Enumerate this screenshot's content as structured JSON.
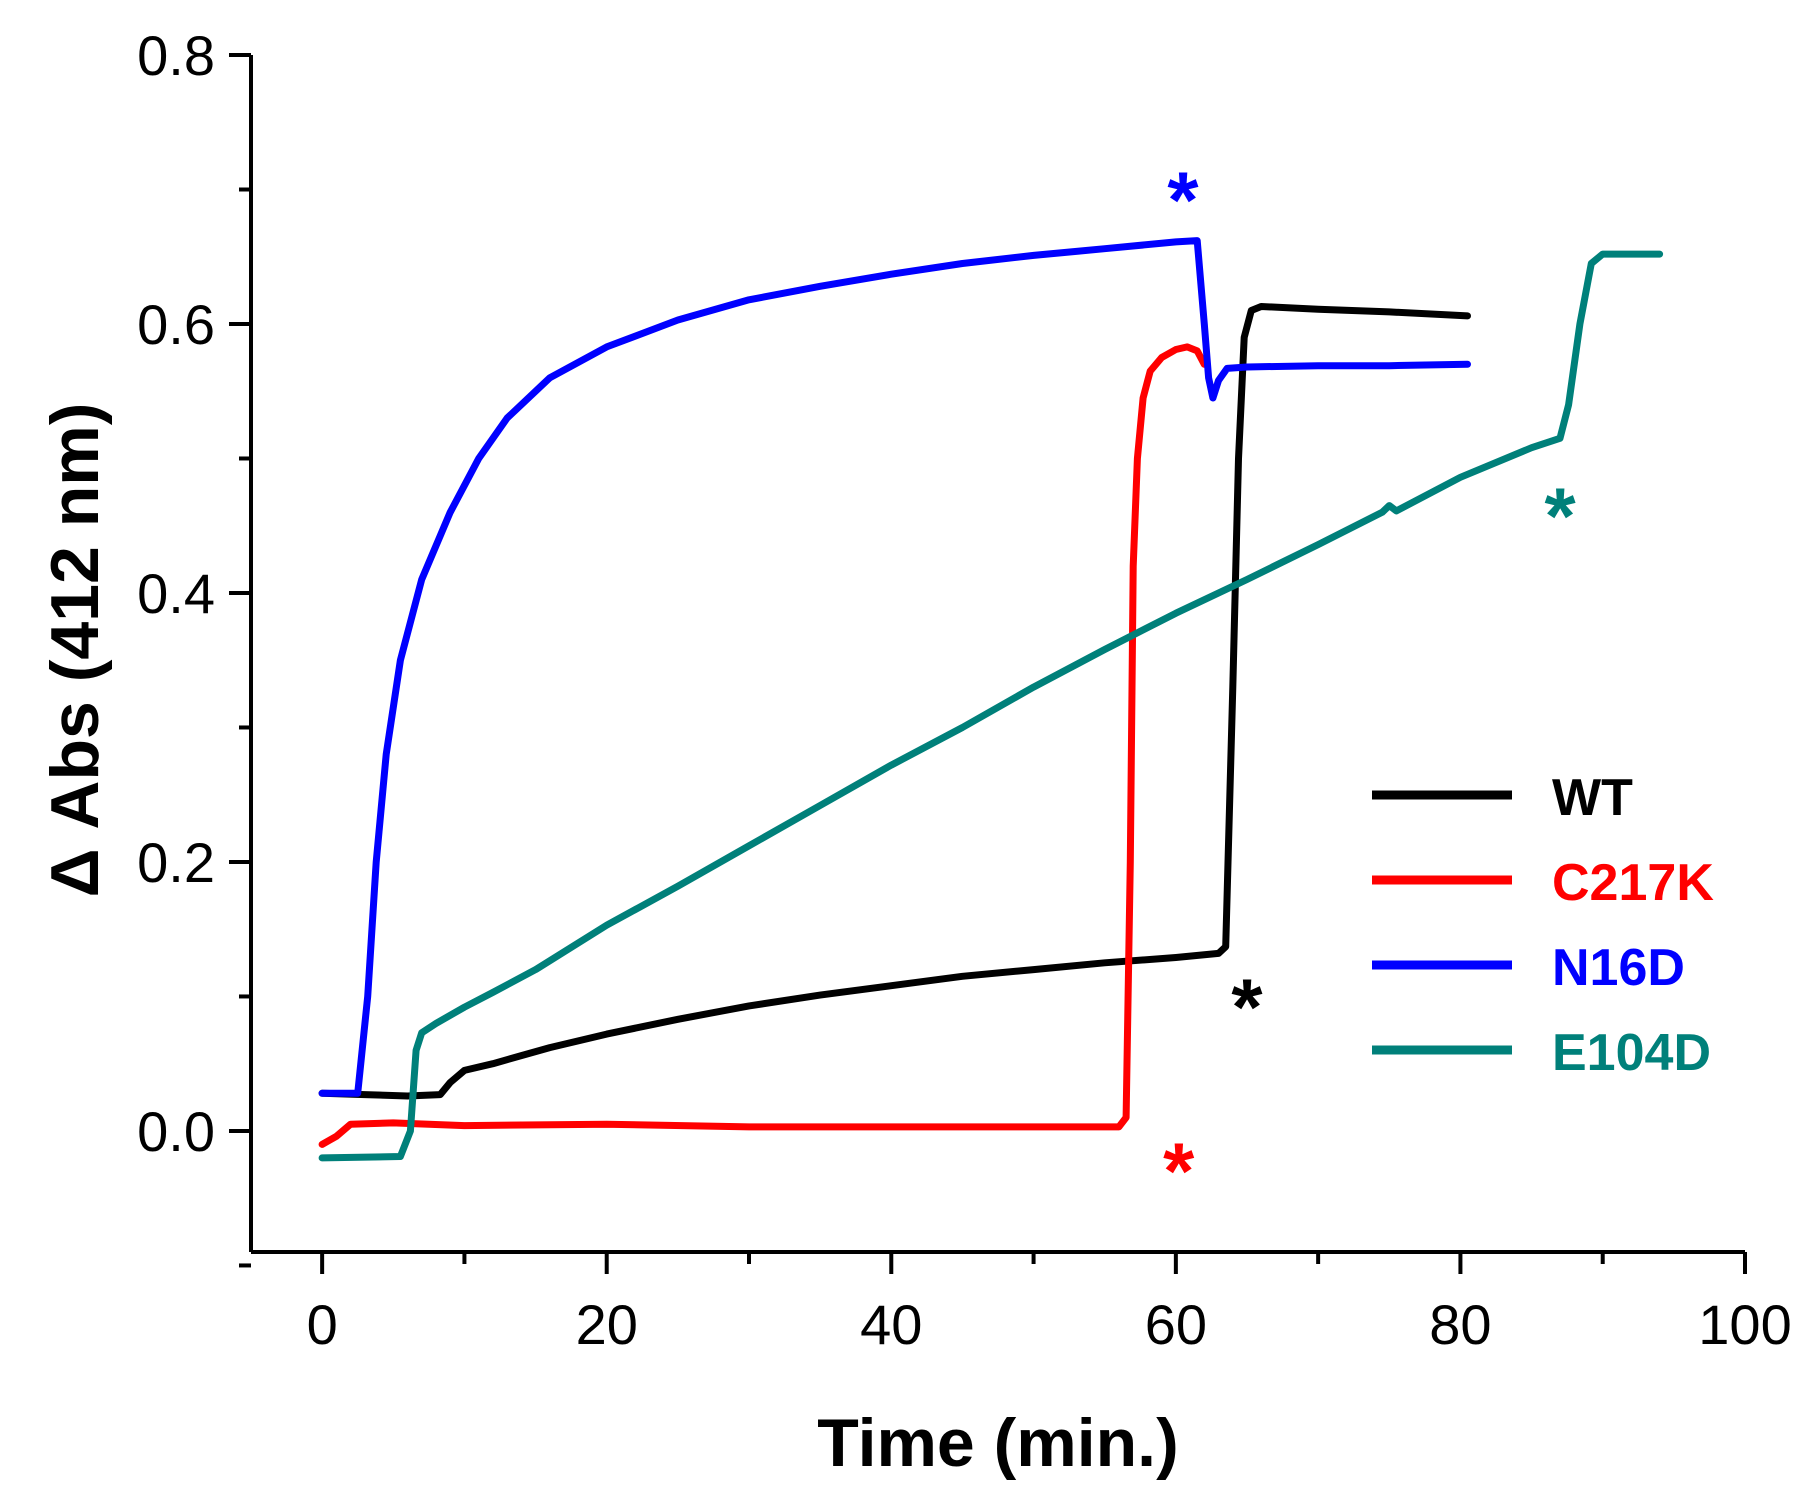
{
  "chart_data": {
    "type": "line",
    "title": "",
    "xlabel": "Time (min.)",
    "ylabel": "Δ Abs (412 nm)",
    "xlim": [
      -5,
      100
    ],
    "ylim": [
      -0.09,
      0.8
    ],
    "xticks": [
      0,
      20,
      40,
      60,
      80,
      100
    ],
    "xtick_labels": [
      "0",
      "20",
      "40",
      "60",
      "80",
      "100"
    ],
    "yticks": [
      0.0,
      0.2,
      0.4,
      0.6,
      0.8
    ],
    "ytick_labels": [
      "0.0",
      "0.2",
      "0.4",
      "0.6",
      "0.8"
    ],
    "grid": false,
    "legend_position": "center-right",
    "series": [
      {
        "name": "WT",
        "color": "#000000",
        "points": [
          [
            0,
            0.028
          ],
          [
            3,
            0.027
          ],
          [
            6,
            0.026
          ],
          [
            8.3,
            0.027
          ],
          [
            9,
            0.036
          ],
          [
            10,
            0.045
          ],
          [
            12,
            0.05
          ],
          [
            14,
            0.056
          ],
          [
            16,
            0.062
          ],
          [
            20,
            0.072
          ],
          [
            25,
            0.083
          ],
          [
            30,
            0.093
          ],
          [
            35,
            0.101
          ],
          [
            40,
            0.108
          ],
          [
            45,
            0.115
          ],
          [
            50,
            0.12
          ],
          [
            55,
            0.125
          ],
          [
            60,
            0.129
          ],
          [
            63,
            0.132
          ],
          [
            63.5,
            0.137
          ],
          [
            64,
            0.33
          ],
          [
            64.4,
            0.5
          ],
          [
            64.8,
            0.59
          ],
          [
            65.3,
            0.61
          ],
          [
            66,
            0.613
          ],
          [
            70,
            0.611
          ],
          [
            75,
            0.609
          ],
          [
            80.5,
            0.606
          ]
        ],
        "marker": {
          "label": "*",
          "x": 65,
          "y": 0.1
        }
      },
      {
        "name": "C217K",
        "color": "#ff0000",
        "points": [
          [
            0,
            -0.01
          ],
          [
            1,
            -0.004
          ],
          [
            2,
            0.005
          ],
          [
            5,
            0.006
          ],
          [
            10,
            0.004
          ],
          [
            20,
            0.005
          ],
          [
            30,
            0.003
          ],
          [
            40,
            0.003
          ],
          [
            50,
            0.003
          ],
          [
            56,
            0.003
          ],
          [
            56.5,
            0.01
          ],
          [
            56.8,
            0.2
          ],
          [
            57,
            0.42
          ],
          [
            57.3,
            0.5
          ],
          [
            57.7,
            0.545
          ],
          [
            58.2,
            0.565
          ],
          [
            59,
            0.575
          ],
          [
            60,
            0.581
          ],
          [
            60.8,
            0.583
          ],
          [
            61.5,
            0.58
          ],
          [
            62,
            0.57
          ]
        ],
        "marker": {
          "label": "*",
          "x": 60.2,
          "y": -0.022
        }
      },
      {
        "name": "N16D",
        "color": "#0000ff",
        "points": [
          [
            0,
            0.028
          ],
          [
            2.5,
            0.028
          ],
          [
            3.2,
            0.1
          ],
          [
            3.8,
            0.2
          ],
          [
            4.5,
            0.28
          ],
          [
            5.5,
            0.35
          ],
          [
            7,
            0.41
          ],
          [
            9,
            0.46
          ],
          [
            11,
            0.5
          ],
          [
            13,
            0.53
          ],
          [
            16,
            0.56
          ],
          [
            20,
            0.583
          ],
          [
            25,
            0.603
          ],
          [
            30,
            0.618
          ],
          [
            35,
            0.628
          ],
          [
            40,
            0.637
          ],
          [
            45,
            0.645
          ],
          [
            50,
            0.651
          ],
          [
            55,
            0.656
          ],
          [
            60,
            0.661
          ],
          [
            61.5,
            0.662
          ],
          [
            62,
            0.6
          ],
          [
            62.3,
            0.56
          ],
          [
            62.6,
            0.545
          ],
          [
            63,
            0.558
          ],
          [
            63.6,
            0.567
          ],
          [
            65,
            0.568
          ],
          [
            70,
            0.569
          ],
          [
            75,
            0.569
          ],
          [
            80.5,
            0.57
          ]
        ],
        "marker": {
          "label": "*",
          "x": 60.5,
          "y": 0.7
        }
      },
      {
        "name": "E104D",
        "color": "#00807a",
        "points": [
          [
            0,
            -0.02
          ],
          [
            5.5,
            -0.019
          ],
          [
            6.2,
            0.0
          ],
          [
            6.6,
            0.06
          ],
          [
            7,
            0.073
          ],
          [
            8,
            0.08
          ],
          [
            10,
            0.092
          ],
          [
            12,
            0.103
          ],
          [
            15,
            0.12
          ],
          [
            20,
            0.153
          ],
          [
            25,
            0.182
          ],
          [
            30,
            0.212
          ],
          [
            35,
            0.242
          ],
          [
            40,
            0.272
          ],
          [
            45,
            0.3
          ],
          [
            50,
            0.33
          ],
          [
            55,
            0.358
          ],
          [
            60,
            0.385
          ],
          [
            65,
            0.41
          ],
          [
            70,
            0.436
          ],
          [
            74.5,
            0.46
          ],
          [
            75,
            0.465
          ],
          [
            75.5,
            0.461
          ],
          [
            80,
            0.486
          ],
          [
            85,
            0.508
          ],
          [
            87,
            0.515
          ],
          [
            87.6,
            0.54
          ],
          [
            88.4,
            0.6
          ],
          [
            89.2,
            0.645
          ],
          [
            90,
            0.652
          ],
          [
            92,
            0.652
          ],
          [
            94,
            0.652
          ]
        ],
        "marker": {
          "label": "*",
          "x": 87,
          "y": 0.465
        }
      }
    ]
  }
}
